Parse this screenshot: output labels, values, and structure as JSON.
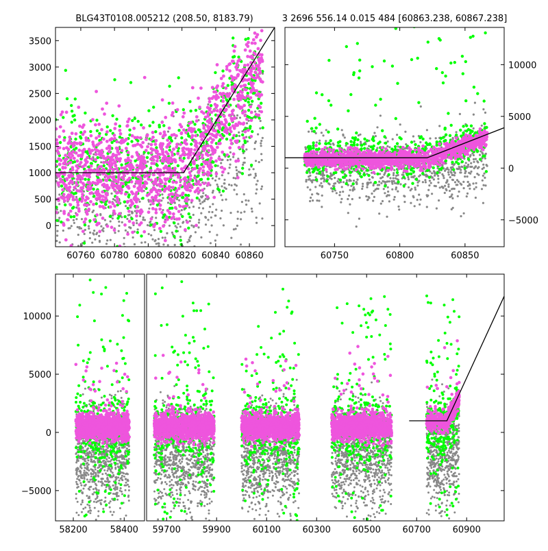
{
  "titles": {
    "left": "BLG43T0108.005212 (208.50, 8183.79)",
    "right": "3 2696 556.14 0.015 484 [60863.238, 60867.238]"
  },
  "colors": {
    "pink": "#ee55dd",
    "green": "#00ff00",
    "grey": "#888888",
    "line": "#000000"
  },
  "chart_data": [
    {
      "name": "top-left",
      "type": "scatter",
      "xlim": [
        60745,
        60875
      ],
      "ylim": [
        -400,
        3750
      ],
      "xticks": [
        60760,
        60780,
        60800,
        60820,
        60840,
        60860
      ],
      "yticks": [
        0,
        500,
        1000,
        1500,
        2000,
        2500,
        3000,
        3500
      ],
      "model_line": [
        [
          60745,
          1000
        ],
        [
          60821,
          1000
        ],
        [
          60875,
          3750
        ]
      ]
    },
    {
      "name": "top-right",
      "type": "scatter",
      "xlim": [
        60712,
        60880
      ],
      "ylim": [
        -7600,
        13600
      ],
      "xticks": [
        60750,
        60800,
        60850
      ],
      "yticks": [
        -5000,
        0,
        5000,
        10000
      ],
      "model_line": [
        [
          60712,
          1000
        ],
        [
          60821,
          1000
        ],
        [
          60880,
          3900
        ]
      ]
    },
    {
      "name": "bottom",
      "type": "scatter",
      "segments": [
        {
          "xlim": [
            58130,
            58480
          ],
          "xticks": [
            58200,
            58400
          ]
        },
        {
          "xlim": [
            59620,
            61050
          ],
          "xticks": [
            59700,
            59900,
            60100,
            60300,
            60500,
            60700,
            60900
          ]
        }
      ],
      "ylim": [
        -7600,
        13600
      ],
      "yticks": [
        -5000,
        0,
        5000,
        10000
      ],
      "seasons": [
        [
          58210,
          58420
        ],
        [
          59650,
          59890
        ],
        [
          60000,
          60230
        ],
        [
          60360,
          60600
        ],
        [
          60740,
          60870
        ]
      ],
      "model_line": [
        [
          60670,
          1000
        ],
        [
          60821,
          1000
        ],
        [
          61050,
          11700
        ]
      ]
    }
  ]
}
